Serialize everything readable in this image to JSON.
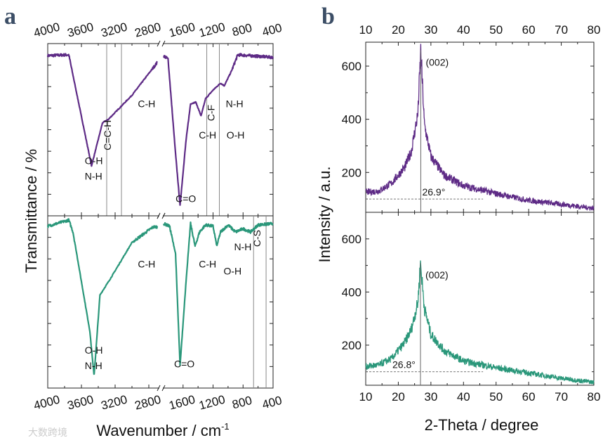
{
  "chart_data": [
    {
      "type": "line",
      "panel_label": "a",
      "title": "",
      "xlabel": "Wavenumber / cm",
      "xlabel_superscript": "-1",
      "ylabel": "Transmittance / %",
      "x_axis_break": [
        2700,
        1860
      ],
      "xlim_left": [
        4000,
        2700
      ],
      "xlim_right": [
        1860,
        400
      ],
      "x_ticks_left": [
        "4000",
        "3600",
        "3200",
        "2800"
      ],
      "x_ticks_right": [
        "1600",
        "1200",
        "800",
        "400"
      ],
      "ylim": [
        0,
        100
      ],
      "y_tick_labels_shown": false,
      "series": [
        {
          "name": "top",
          "color": "#5e2b86",
          "x": [
            4000,
            3750,
            3480,
            3350,
            3280,
            3000,
            2700,
            1860,
            1800,
            1700,
            1640,
            1560,
            1500,
            1430,
            1360,
            1300,
            1200,
            1100,
            1050,
            950,
            870,
            400
          ],
          "y": [
            93,
            93.5,
            29,
            54,
            56,
            70,
            89,
            93,
            91,
            36,
            6,
            44,
            65,
            66,
            58,
            68,
            73,
            77,
            75.5,
            84.5,
            93.5,
            92
          ],
          "reference_lines_x": [
            3300,
            3125,
            1284,
            1116
          ],
          "annotations": [
            {
              "text": "O-H",
              "x": 3560,
              "y": 30
            },
            {
              "text": "N-H",
              "x": 3560,
              "y": 21
            },
            {
              "text": "C=C-H",
              "x": 3250,
              "y": 38,
              "rotated": true
            },
            {
              "text": "C-H",
              "x": 2930,
              "y": 63
            },
            {
              "text": "C=O",
              "x": 1700,
              "y": 8
            },
            {
              "text": "C-H",
              "x": 1390,
              "y": 45
            },
            {
              "text": "C-F",
              "x": 1180,
              "y": 55,
              "rotated": true
            },
            {
              "text": "N-H",
              "x": 1030,
              "y": 63
            },
            {
              "text": "O-H",
              "x": 1020,
              "y": 45
            }
          ]
        },
        {
          "name": "bottom",
          "color": "#2a977a",
          "x": [
            4000,
            3750,
            3700,
            3500,
            3450,
            3380,
            3250,
            3000,
            2750,
            1860,
            1780,
            1700,
            1640,
            1560,
            1500,
            1440,
            1380,
            1300,
            1200,
            1150,
            1100,
            1000,
            900,
            800,
            700,
            600,
            400
          ],
          "y": [
            94,
            97.5,
            90.6,
            33,
            7,
            54,
            64,
            84.5,
            93.5,
            95.5,
            94,
            78,
            13,
            62,
            95.5,
            82.4,
            90.6,
            94.7,
            94,
            82.4,
            90.6,
            94.7,
            90.6,
            92.5,
            90.6,
            94.7,
            95.5
          ],
          "reference_lines_x": [
            660,
            493
          ],
          "annotations": [
            {
              "text": "O-H",
              "x": 3560,
              "y": 20
            },
            {
              "text": "N-H",
              "x": 3560,
              "y": 11
            },
            {
              "text": "C-H",
              "x": 2930,
              "y": 70
            },
            {
              "text": "C=O",
              "x": 1720,
              "y": 12
            },
            {
              "text": "C-H",
              "x": 1390,
              "y": 70
            },
            {
              "text": "O-H",
              "x": 1060,
              "y": 66
            },
            {
              "text": "N-H",
              "x": 920,
              "y": 80
            },
            {
              "text": "C-S",
              "x": 570,
              "y": 82,
              "rotated": true
            }
          ]
        }
      ]
    },
    {
      "type": "line",
      "panel_label": "b",
      "xlabel": "2-Theta / degree",
      "ylabel": "Intensity / a.u.",
      "xlim": [
        10,
        80
      ],
      "x_ticks": [
        "10",
        "20",
        "30",
        "40",
        "50",
        "60",
        "70",
        "80"
      ],
      "series": [
        {
          "name": "top",
          "color": "#5e2b86",
          "ylim": [
            50,
            690
          ],
          "y_ticks": [
            "200",
            "400",
            "600"
          ],
          "x": [
            10,
            14,
            18,
            22,
            24,
            26,
            26.9,
            28,
            30,
            34,
            40,
            50,
            60,
            70,
            80
          ],
          "y": [
            125,
            130,
            160,
            220,
            280,
            420,
            660,
            380,
            260,
            190,
            150,
            120,
            95,
            80,
            65
          ],
          "peak_label": "(002)",
          "peak_position_label": "26.9°",
          "peak_x": 26.9,
          "baseline_y": 100
        },
        {
          "name": "bottom",
          "color": "#2a977a",
          "ylim": [
            49,
            700
          ],
          "y_ticks": [
            "200",
            "400",
            "600"
          ],
          "x": [
            10,
            14,
            18,
            22,
            24,
            26,
            26.8,
            28,
            30,
            34,
            40,
            50,
            60,
            70,
            80
          ],
          "y": [
            120,
            125,
            150,
            210,
            260,
            360,
            510,
            340,
            240,
            180,
            140,
            115,
            95,
            75,
            60
          ],
          "peak_label": "(002)",
          "peak_position_label": "26.8°",
          "peak_x": 26.8,
          "baseline_y": 100
        }
      ]
    }
  ],
  "watermark": "大数跨境"
}
